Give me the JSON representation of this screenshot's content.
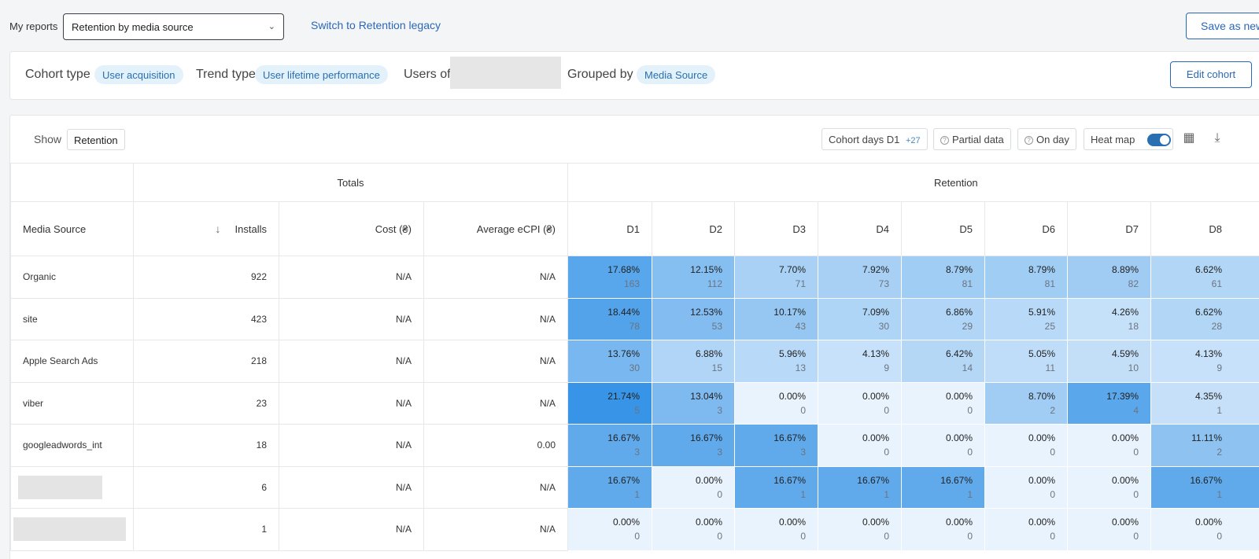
{
  "top": {
    "my_reports": "My reports",
    "report_selected": "Retention by media source",
    "switch_link": "Switch to Retention legacy",
    "save_new": "Save as new"
  },
  "cohort": {
    "cohort_type_label": "Cohort type",
    "cohort_type_value": "User acquisition",
    "trend_type_label": "Trend type",
    "trend_type_value": "User lifetime performance",
    "users_of_label": "Users of",
    "grouped_by_label": "Grouped by",
    "grouped_by_value": "Media Source",
    "edit_cohort": "Edit cohort"
  },
  "toolbar": {
    "show_label": "Show",
    "show_value": "Retention",
    "cohort_days_label": "Cohort days",
    "cohort_days_value": "D1",
    "cohort_days_extra": "+27",
    "partial_data": "Partial data",
    "on_day": "On day",
    "heat_map": "Heat map",
    "heat_map_on": true
  },
  "table": {
    "group_totals": "Totals",
    "group_retention": "Retention",
    "col_source": "Media Source",
    "col_installs": "Installs",
    "col_cost": "Cost (₴)",
    "col_ecpi": "Average eCPI (₴)",
    "days": [
      "D1",
      "D2",
      "D3",
      "D4",
      "D5",
      "D6",
      "D7",
      "D8"
    ],
    "rows": [
      {
        "source": "Organic",
        "installs": "922",
        "cost": "N/A",
        "ecpi": "N/A",
        "cells": [
          [
            "17.68%",
            "163"
          ],
          [
            "12.15%",
            "112"
          ],
          [
            "7.70%",
            "71"
          ],
          [
            "7.92%",
            "73"
          ],
          [
            "8.79%",
            "81"
          ],
          [
            "8.79%",
            "81"
          ],
          [
            "8.89%",
            "82"
          ],
          [
            "6.62%",
            "61"
          ]
        ]
      },
      {
        "source": "site",
        "installs": "423",
        "cost": "N/A",
        "ecpi": "N/A",
        "cells": [
          [
            "18.44%",
            "78"
          ],
          [
            "12.53%",
            "53"
          ],
          [
            "10.17%",
            "43"
          ],
          [
            "7.09%",
            "30"
          ],
          [
            "6.86%",
            "29"
          ],
          [
            "5.91%",
            "25"
          ],
          [
            "4.26%",
            "18"
          ],
          [
            "6.62%",
            "28"
          ]
        ]
      },
      {
        "source": "Apple Search Ads",
        "installs": "218",
        "cost": "N/A",
        "ecpi": "N/A",
        "cells": [
          [
            "13.76%",
            "30"
          ],
          [
            "6.88%",
            "15"
          ],
          [
            "5.96%",
            "13"
          ],
          [
            "4.13%",
            "9"
          ],
          [
            "6.42%",
            "14"
          ],
          [
            "5.05%",
            "11"
          ],
          [
            "4.59%",
            "10"
          ],
          [
            "4.13%",
            "9"
          ]
        ]
      },
      {
        "source": "viber",
        "installs": "23",
        "cost": "N/A",
        "ecpi": "N/A",
        "cells": [
          [
            "21.74%",
            "5"
          ],
          [
            "13.04%",
            "3"
          ],
          [
            "0.00%",
            "0"
          ],
          [
            "0.00%",
            "0"
          ],
          [
            "0.00%",
            "0"
          ],
          [
            "8.70%",
            "2"
          ],
          [
            "17.39%",
            "4"
          ],
          [
            "4.35%",
            "1"
          ]
        ]
      },
      {
        "source": "googleadwords_int",
        "installs": "18",
        "cost": "N/A",
        "ecpi": "0.00",
        "cells": [
          [
            "16.67%",
            "3"
          ],
          [
            "16.67%",
            "3"
          ],
          [
            "16.67%",
            "3"
          ],
          [
            "0.00%",
            "0"
          ],
          [
            "0.00%",
            "0"
          ],
          [
            "0.00%",
            "0"
          ],
          [
            "0.00%",
            "0"
          ],
          [
            "11.11%",
            "2"
          ]
        ]
      },
      {
        "source": "",
        "installs": "6",
        "cost": "N/A",
        "ecpi": "N/A",
        "cells": [
          [
            "16.67%",
            "1"
          ],
          [
            "0.00%",
            "0"
          ],
          [
            "16.67%",
            "1"
          ],
          [
            "16.67%",
            "1"
          ],
          [
            "16.67%",
            "1"
          ],
          [
            "0.00%",
            "0"
          ],
          [
            "0.00%",
            "0"
          ],
          [
            "16.67%",
            "1"
          ]
        ]
      },
      {
        "source": "",
        "installs": "1",
        "cost": "N/A",
        "ecpi": "N/A",
        "cells": [
          [
            "0.00%",
            "0"
          ],
          [
            "0.00%",
            "0"
          ],
          [
            "0.00%",
            "0"
          ],
          [
            "0.00%",
            "0"
          ],
          [
            "0.00%",
            "0"
          ],
          [
            "0.00%",
            "0"
          ],
          [
            "0.00%",
            "0"
          ],
          [
            "0.00%",
            "0"
          ]
        ]
      }
    ]
  }
}
